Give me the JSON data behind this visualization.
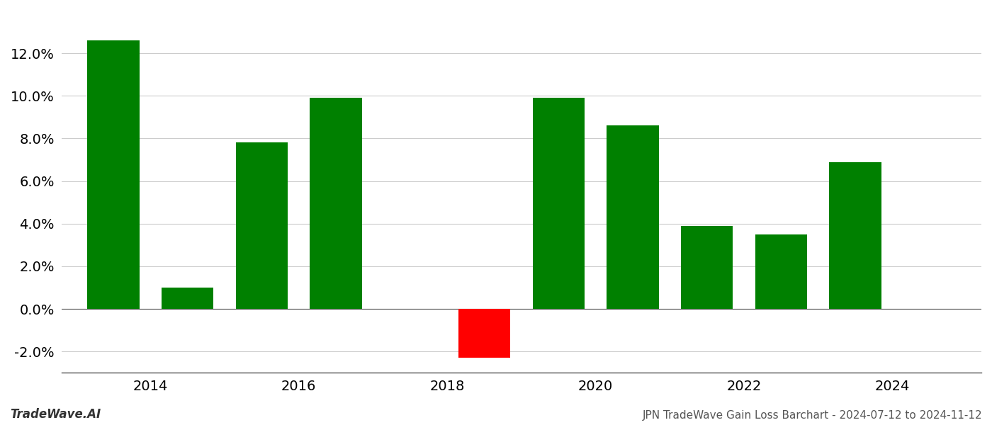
{
  "years": [
    2013,
    2014,
    2015,
    2016,
    2017,
    2018,
    2019,
    2020,
    2021,
    2022,
    2023
  ],
  "values": [
    0.126,
    0.01,
    0.078,
    0.099,
    null,
    -0.023,
    0.099,
    0.086,
    0.039,
    0.035,
    0.069
  ],
  "bar_colors": [
    "#008000",
    "#008000",
    "#008000",
    "#008000",
    null,
    "#FF0000",
    "#008000",
    "#008000",
    "#008000",
    "#008000",
    "#008000"
  ],
  "title": "JPN TradeWave Gain Loss Barchart - 2024-07-12 to 2024-11-12",
  "watermark": "TradeWave.AI",
  "xlim": [
    2012.3,
    2024.7
  ],
  "ylim": [
    -0.03,
    0.14
  ],
  "yticks": [
    -0.02,
    0.0,
    0.02,
    0.04,
    0.06,
    0.08,
    0.1,
    0.12
  ],
  "xticks": [
    2013.5,
    2015.5,
    2017.5,
    2019.5,
    2021.5,
    2023.5
  ],
  "xticklabels": [
    "2014",
    "2016",
    "2018",
    "2020",
    "2022",
    "2024"
  ],
  "background_color": "#ffffff",
  "grid_color": "#cccccc",
  "bar_width": 0.7
}
